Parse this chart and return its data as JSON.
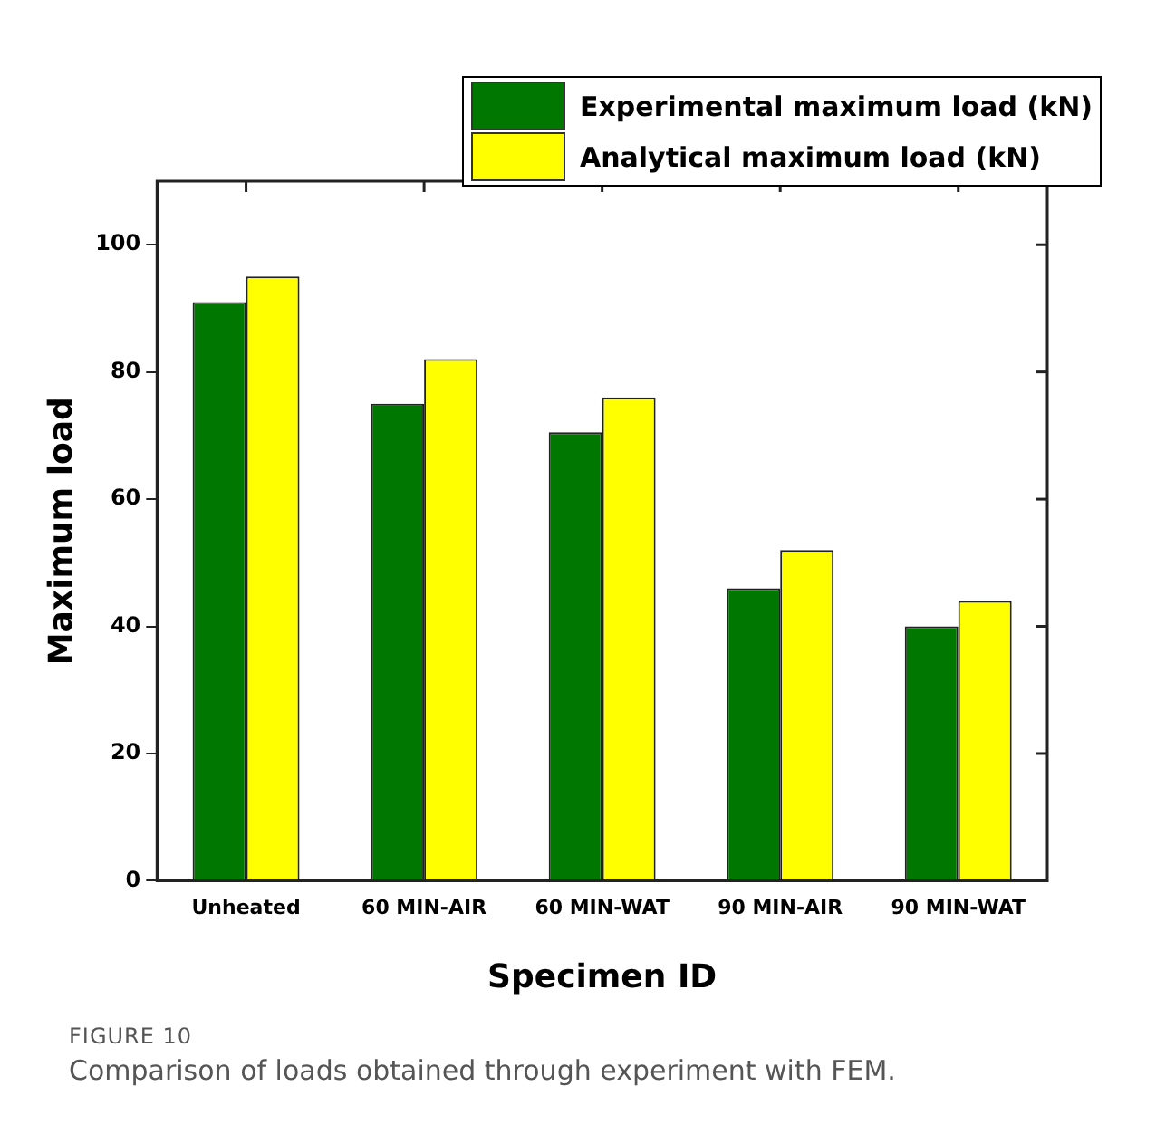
{
  "chart_data": {
    "type": "bar",
    "xlabel": "Specimen ID",
    "ylabel": "Maximum load",
    "categories": [
      "Unheated",
      "60 MIN-AIR",
      "60 MIN-WAT",
      "90 MIN-AIR",
      "90 MIN-WAT"
    ],
    "series": [
      {
        "name": "Experimental maximum load (kN)",
        "color": "#007800",
        "values": [
          91,
          75,
          70.5,
          46,
          40
        ]
      },
      {
        "name": "Analytical maximum load (kN)",
        "color": "#ffff00",
        "values": [
          95,
          82,
          76,
          52,
          44
        ]
      }
    ],
    "ylim": [
      0,
      110
    ],
    "yticks": [
      0,
      20,
      40,
      60,
      80,
      100
    ],
    "grid": false,
    "legend": "top right",
    "annotations": [
      "FIGURE 10",
      "Comparison of loads obtained through experiment with FEM."
    ]
  }
}
